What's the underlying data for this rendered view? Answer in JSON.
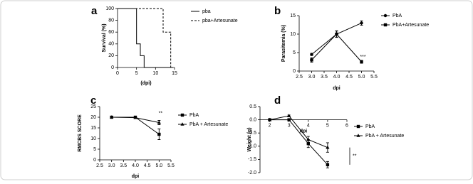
{
  "chart_data": [
    {
      "panel": "a",
      "type": "step",
      "ylabel": "Survival (%)",
      "xlabel": "(dpi)",
      "xlim": [
        0,
        15
      ],
      "xticks": [
        0,
        5,
        10,
        15
      ],
      "ylim": [
        0,
        100
      ],
      "yticks": [
        0,
        20,
        40,
        60,
        80,
        100
      ],
      "series": [
        {
          "name": "pba",
          "color": "#000000",
          "dash": false,
          "marker": "none",
          "x": [
            0,
            5,
            6,
            7
          ],
          "values": [
            100,
            40,
            20,
            0
          ]
        },
        {
          "name": "pba+Artesunate",
          "color": "#000000",
          "dash": true,
          "marker": "none",
          "x": [
            0,
            12,
            14
          ],
          "values": [
            100,
            60,
            0
          ]
        }
      ]
    },
    {
      "panel": "b",
      "type": "line",
      "ylabel": "Parasitemia (%)",
      "xlabel": "dpi",
      "annotation": "***",
      "xlim": [
        2.5,
        5.5
      ],
      "xticks": [
        2.5,
        {
          "value": 3,
          "label": "3.0"
        },
        3.5,
        {
          "value": 4,
          "label": "4.0"
        },
        4.5,
        {
          "value": 5,
          "label": "5.0"
        },
        5.5
      ],
      "ylim": [
        0,
        15
      ],
      "yticks": [
        0,
        5,
        10,
        15
      ],
      "series": [
        {
          "name": "PbA",
          "color": "#000000",
          "dash": false,
          "marker": "circle",
          "x": [
            3,
            4,
            5
          ],
          "values": [
            4.5,
            10,
            13
          ],
          "errors": [
            0.3,
            0.8,
            0.6
          ]
        },
        {
          "name": "PbA+Artesunate",
          "color": "#000000",
          "dash": false,
          "marker": "square",
          "x": [
            3,
            4,
            5
          ],
          "values": [
            3,
            10,
            2.5
          ],
          "errors": [
            0.6,
            0.9,
            0.4
          ]
        }
      ]
    },
    {
      "panel": "c",
      "type": "line",
      "ylabel": "RMCBS SCORE",
      "xlabel": "dpi",
      "annotation": "**",
      "xlim": [
        2.5,
        5.5
      ],
      "xticks": [
        2.5,
        {
          "value": 3,
          "label": "3.0"
        },
        3.5,
        {
          "value": 4,
          "label": "4.0"
        },
        4.5,
        {
          "value": 5,
          "label": "5.0"
        },
        5.5
      ],
      "ylim": [
        0,
        25
      ],
      "yticks": [
        0,
        5,
        10,
        15,
        20,
        25
      ],
      "series": [
        {
          "name": "PbA",
          "color": "#000000",
          "dash": false,
          "marker": "square",
          "x": [
            3,
            4,
            5
          ],
          "values": [
            20,
            20,
            12
          ],
          "errors": [
            0.2,
            0.3,
            2.5
          ]
        },
        {
          "name": "PbA + Artesunate",
          "color": "#000000",
          "dash": false,
          "marker": "triangle",
          "x": [
            3,
            4,
            5
          ],
          "values": [
            20,
            19.8,
            17.5
          ],
          "errors": [
            0.2,
            0.3,
            1
          ]
        }
      ]
    },
    {
      "panel": "d",
      "type": "line",
      "ylabel": "Weight (g)",
      "xlabel": "dpi",
      "annotation": "**",
      "xlim": [
        1.5,
        6
      ],
      "xticks": [
        2,
        3,
        4,
        5,
        6
      ],
      "ylim": [
        -2,
        0.5
      ],
      "yticks": [
        {
          "value": 0.5,
          "label": "0.5"
        },
        {
          "value": 0,
          "label": "0.0"
        },
        {
          "value": -0.5,
          "label": "-0.5"
        },
        {
          "value": -1,
          "label": "-1.0"
        },
        {
          "value": -1.5,
          "label": "-1.5"
        },
        {
          "value": -2,
          "label": "-2.0"
        }
      ],
      "series": [
        {
          "name": "PbA",
          "color": "#000000",
          "dash": false,
          "marker": "square",
          "x": [
            2,
            3,
            4,
            5
          ],
          "values": [
            0,
            0,
            -0.9,
            -1.7
          ],
          "errors": [
            0.02,
            0.03,
            0.15,
            0.12
          ]
        },
        {
          "name": "PbA + Artesunate",
          "color": "#000000",
          "dash": false,
          "marker": "triangle",
          "x": [
            2,
            3,
            4,
            5
          ],
          "values": [
            0,
            0.15,
            -0.75,
            -1.05
          ],
          "errors": [
            0.02,
            0.03,
            0.12,
            0.18
          ]
        }
      ]
    }
  ]
}
